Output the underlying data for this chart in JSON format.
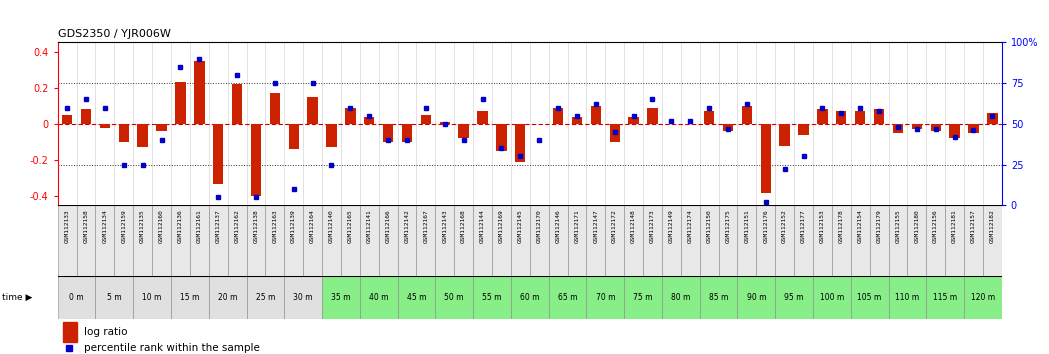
{
  "title": "GDS2350 / YJR006W",
  "categories": [
    "GSM112133",
    "GSM112158",
    "GSM112134",
    "GSM112159",
    "GSM112135",
    "GSM112160",
    "GSM112136",
    "GSM112161",
    "GSM112137",
    "GSM112162",
    "GSM112138",
    "GSM112163",
    "GSM112139",
    "GSM112164",
    "GSM112140",
    "GSM112165",
    "GSM112141",
    "GSM112166",
    "GSM112142",
    "GSM112167",
    "GSM112143",
    "GSM112168",
    "GSM112144",
    "GSM112169",
    "GSM112145",
    "GSM112170",
    "GSM112146",
    "GSM112171",
    "GSM112147",
    "GSM112172",
    "GSM112148",
    "GSM112173",
    "GSM112149",
    "GSM112174",
    "GSM112150",
    "GSM112175",
    "GSM112151",
    "GSM112176",
    "GSM112152",
    "GSM112177",
    "GSM112153",
    "GSM112178",
    "GSM112154",
    "GSM112179",
    "GSM112155",
    "GSM112180",
    "GSM112156",
    "GSM112181",
    "GSM112157",
    "GSM112182"
  ],
  "time_labels": [
    "0 m",
    "5 m",
    "10 m",
    "15 m",
    "20 m",
    "25 m",
    "30 m",
    "35 m",
    "40 m",
    "45 m",
    "50 m",
    "55 m",
    "60 m",
    "65 m",
    "70 m",
    "75 m",
    "80 m",
    "85 m",
    "90 m",
    "95 m",
    "100 m",
    "105 m",
    "110 m",
    "115 m",
    "120 m"
  ],
  "log_ratio": [
    0.05,
    0.08,
    -0.02,
    -0.1,
    -0.13,
    -0.04,
    0.23,
    0.35,
    -0.33,
    0.22,
    -0.4,
    0.17,
    -0.14,
    0.15,
    -0.13,
    0.09,
    0.04,
    -0.1,
    -0.1,
    0.05,
    0.01,
    -0.08,
    0.07,
    -0.15,
    -0.21,
    0.0,
    0.09,
    0.04,
    0.1,
    -0.1,
    0.04,
    0.09,
    0.0,
    0.0,
    0.07,
    -0.04,
    0.1,
    -0.38,
    -0.12,
    -0.06,
    0.08,
    0.07,
    0.07,
    0.08,
    -0.05,
    -0.03,
    -0.04,
    -0.08,
    -0.05,
    0.06
  ],
  "percentile": [
    60,
    65,
    60,
    25,
    25,
    40,
    85,
    90,
    5,
    80,
    5,
    75,
    10,
    75,
    25,
    60,
    55,
    40,
    40,
    60,
    50,
    40,
    65,
    35,
    30,
    40,
    60,
    55,
    62,
    45,
    55,
    65,
    52,
    52,
    60,
    47,
    62,
    2,
    22,
    30,
    60,
    57,
    60,
    58,
    48,
    47,
    47,
    42,
    46,
    55
  ],
  "bar_color": "#cc2200",
  "dot_color": "#0000cc",
  "zero_line_color": "#cc0000",
  "dotted_line_color": "#333333",
  "ylim": [
    -0.45,
    0.45
  ],
  "y2lim": [
    0,
    100
  ],
  "yticks": [
    -0.4,
    -0.2,
    0.0,
    0.2,
    0.4
  ],
  "y2ticks": [
    0,
    25,
    50,
    75,
    100
  ],
  "bg_color_gray": "#e0e0e0",
  "bg_color_green": "#88ee88",
  "time_bg_colors": [
    "#e0e0e0",
    "#e0e0e0",
    "#e0e0e0",
    "#e0e0e0",
    "#e0e0e0",
    "#e0e0e0",
    "#e0e0e0",
    "#88ee88",
    "#88ee88",
    "#88ee88",
    "#88ee88",
    "#88ee88",
    "#88ee88",
    "#88ee88",
    "#88ee88",
    "#88ee88",
    "#88ee88",
    "#88ee88",
    "#88ee88",
    "#88ee88",
    "#88ee88",
    "#88ee88",
    "#88ee88",
    "#88ee88",
    "#88ee88"
  ],
  "legend_log_ratio": "log ratio",
  "legend_percentile": "percentile rank within the sample"
}
